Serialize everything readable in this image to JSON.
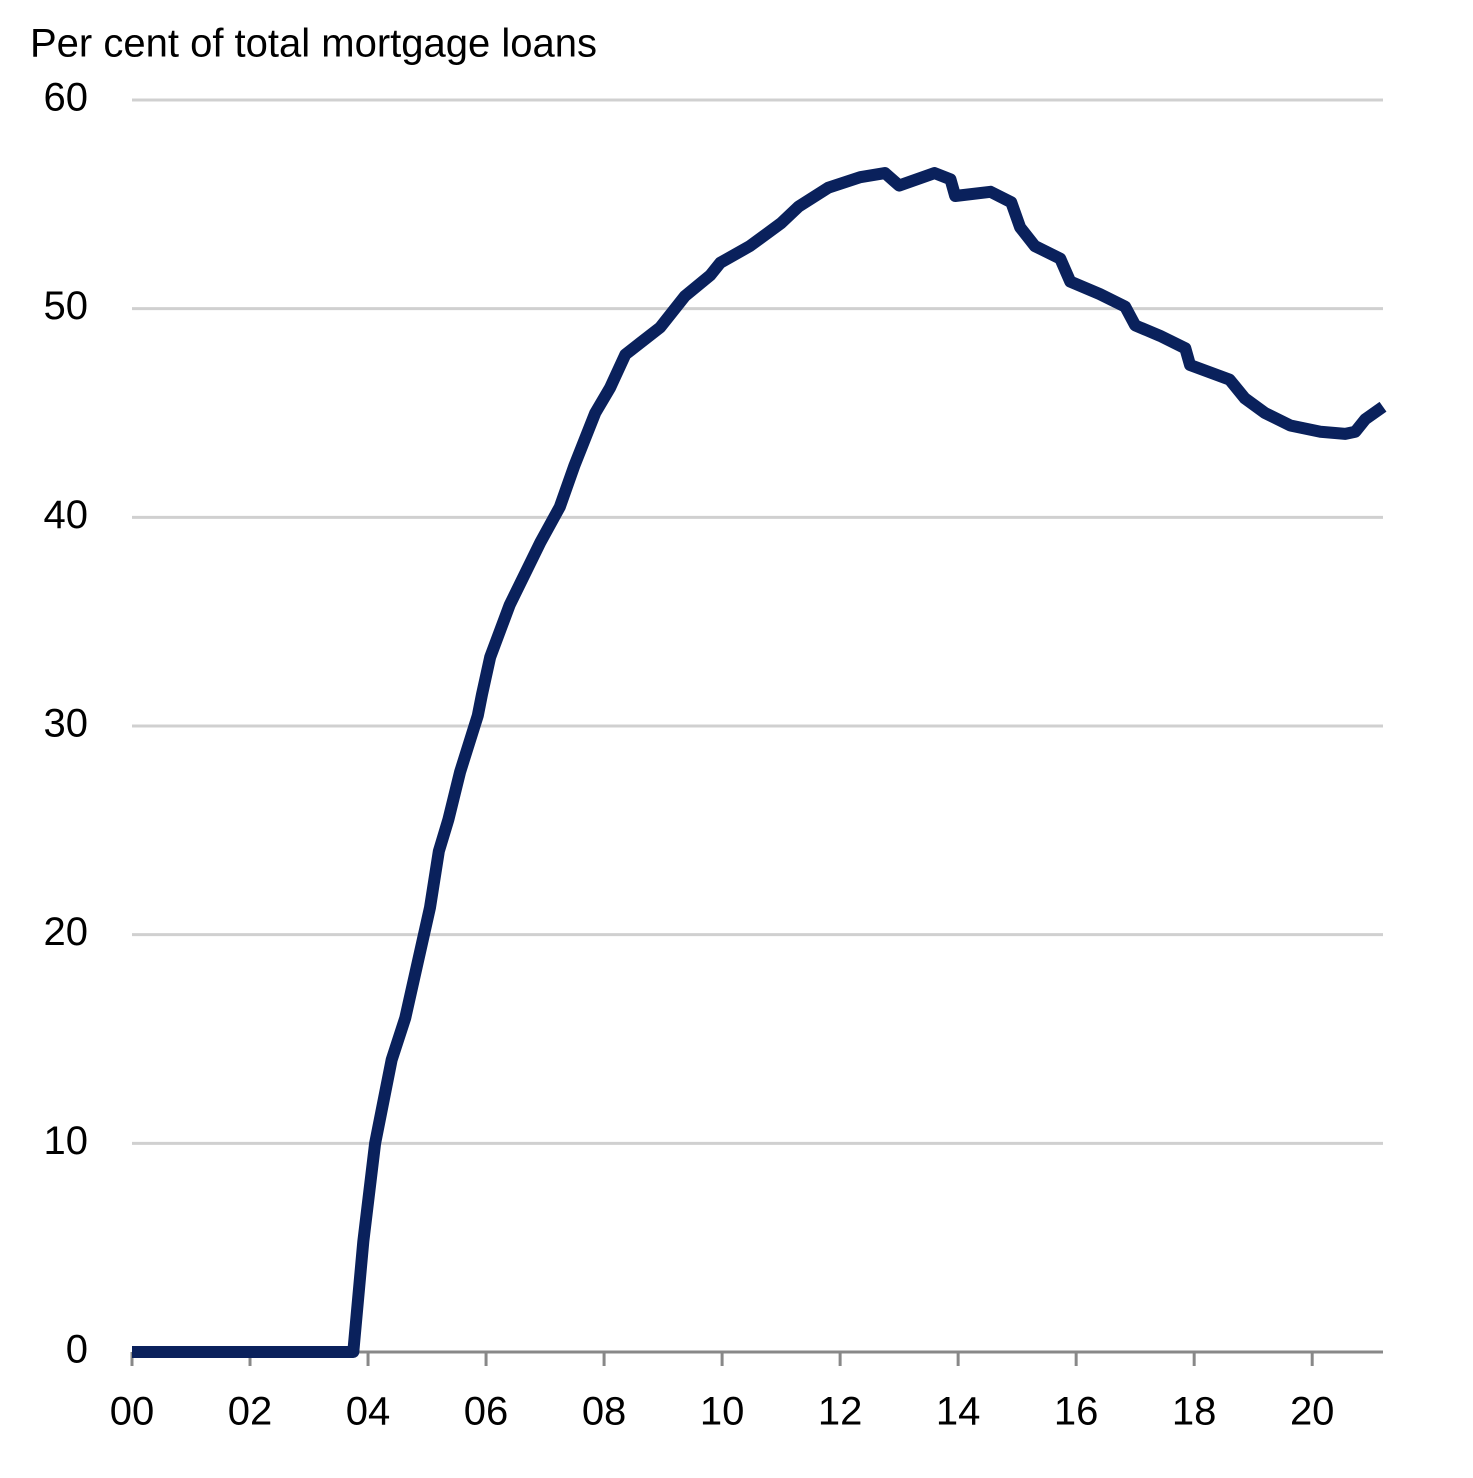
{
  "chart_data": {
    "type": "line",
    "title": "Per cent of total mortgage loans",
    "x": [
      2000,
      2003.75,
      2003.92,
      2004.12,
      2004.4,
      2004.63,
      2005.05,
      2005.2,
      2005.36,
      2005.56,
      2005.86,
      2005.93,
      2006.07,
      2006.4,
      2006.92,
      2007.25,
      2007.5,
      2007.85,
      2008.1,
      2008.36,
      2008.95,
      2009.37,
      2009.8,
      2009.97,
      2010.47,
      2011.0,
      2011.3,
      2011.8,
      2012.34,
      2012.76,
      2013.0,
      2013.6,
      2013.87,
      2013.95,
      2014.55,
      2014.9,
      2015.05,
      2015.3,
      2015.73,
      2015.9,
      2016.4,
      2016.83,
      2017.0,
      2017.42,
      2017.85,
      2017.93,
      2018.6,
      2018.86,
      2019.2,
      2019.63,
      2020.14,
      2020.56,
      2020.73,
      2020.9,
      2021.2
    ],
    "series": [
      {
        "color": "#0a215c",
        "values": [
          0,
          0,
          5.3,
          10,
          14,
          16,
          21.3,
          24,
          25.5,
          27.8,
          30.5,
          31.5,
          33.3,
          35.8,
          38.8,
          40.5,
          42.5,
          45,
          46.2,
          47.8,
          49.1,
          50.6,
          51.6,
          52.2,
          53,
          54.1,
          54.9,
          55.8,
          56.3,
          56.5,
          55.9,
          56.5,
          56.2,
          55.4,
          55.6,
          55.1,
          53.9,
          53,
          52.4,
          51.3,
          50.7,
          50.1,
          49.2,
          48.7,
          48.1,
          47.3,
          46.6,
          45.7,
          45,
          44.4,
          44.1,
          44,
          44.1,
          44.7,
          45.3
        ]
      }
    ],
    "xlim": [
      2000,
      2021.2
    ],
    "xticks": [
      {
        "value": 2000,
        "label": "00"
      },
      {
        "value": 2002,
        "label": "02"
      },
      {
        "value": 2004,
        "label": "04"
      },
      {
        "value": 2006,
        "label": "06"
      },
      {
        "value": 2008,
        "label": "08"
      },
      {
        "value": 2010,
        "label": "10"
      },
      {
        "value": 2012,
        "label": "12"
      },
      {
        "value": 2014,
        "label": "14"
      },
      {
        "value": 2016,
        "label": "16"
      },
      {
        "value": 2018,
        "label": "18"
      },
      {
        "value": 2020,
        "label": "20"
      }
    ],
    "ylim": [
      0,
      60
    ],
    "yticks": [
      0,
      10,
      20,
      30,
      40,
      50,
      60
    ],
    "grid": true
  }
}
